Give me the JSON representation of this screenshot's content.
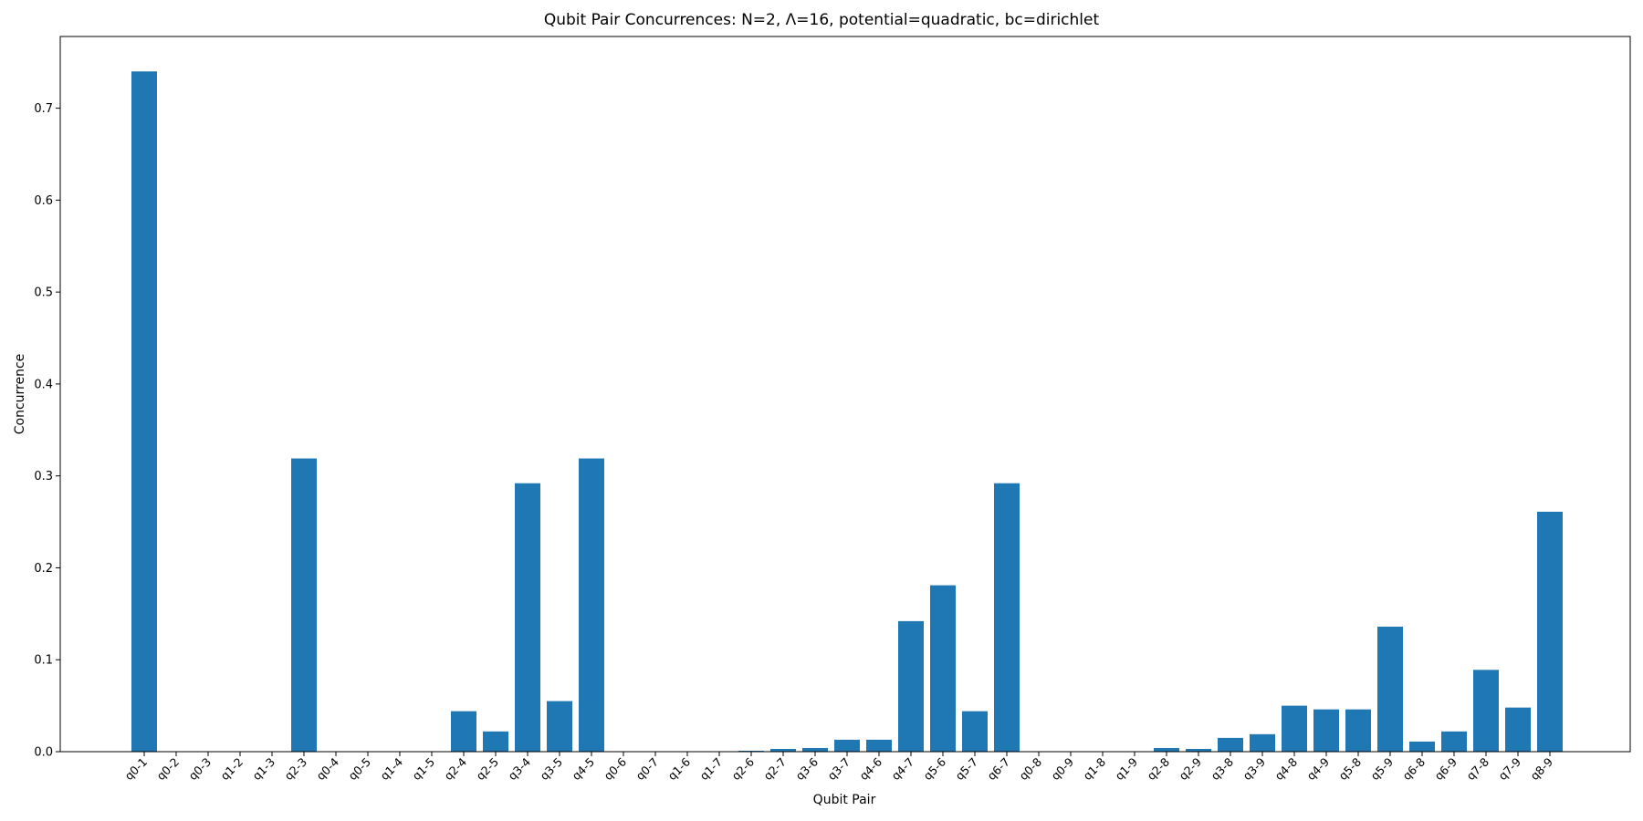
{
  "chart_data": {
    "type": "bar",
    "title": "Qubit Pair Concurrences: N=2, Λ=16, potential=quadratic, bc=dirichlet",
    "xlabel": "Qubit Pair",
    "ylabel": "Concurrence",
    "ylim": [
      0,
      0.778
    ],
    "yticks": [
      0.0,
      0.1,
      0.2,
      0.3,
      0.4,
      0.5,
      0.6,
      0.7
    ],
    "grid": false,
    "color": "#1f77b4",
    "categories": [
      "q0-1",
      "q0-2",
      "q0-3",
      "q1-2",
      "q1-3",
      "q2-3",
      "q0-4",
      "q0-5",
      "q1-4",
      "q1-5",
      "q2-4",
      "q2-5",
      "q3-4",
      "q3-5",
      "q4-5",
      "q0-6",
      "q0-7",
      "q1-6",
      "q1-7",
      "q2-6",
      "q2-7",
      "q3-6",
      "q3-7",
      "q4-6",
      "q4-7",
      "q5-6",
      "q5-7",
      "q6-7",
      "q0-8",
      "q0-9",
      "q1-8",
      "q1-9",
      "q2-8",
      "q2-9",
      "q3-8",
      "q3-9",
      "q4-8",
      "q4-9",
      "q5-8",
      "q5-9",
      "q6-8",
      "q6-9",
      "q7-8",
      "q7-9",
      "q8-9"
    ],
    "values": [
      0.74,
      0.0,
      0.0,
      0.0,
      0.0,
      0.319,
      0.0,
      0.0,
      0.0,
      0.0,
      0.044,
      0.022,
      0.292,
      0.055,
      0.319,
      0.0,
      0.0,
      0.0,
      0.0,
      0.001,
      0.003,
      0.004,
      0.013,
      0.013,
      0.142,
      0.181,
      0.044,
      0.292,
      0.0,
      0.0,
      0.0,
      0.0,
      0.004,
      0.003,
      0.015,
      0.019,
      0.05,
      0.046,
      0.046,
      0.136,
      0.011,
      0.022,
      0.089,
      0.048,
      0.261
    ]
  }
}
